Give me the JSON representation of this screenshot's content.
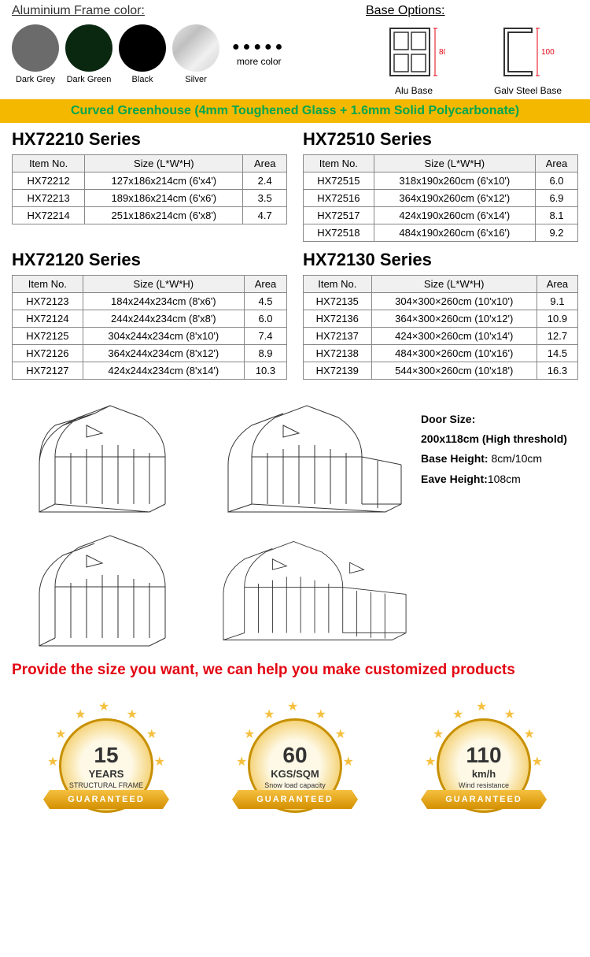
{
  "frame_section": {
    "title": "Aluminium Frame color:",
    "colors": [
      {
        "name": "Dark Grey",
        "hex": "#6b6b6b"
      },
      {
        "name": "Dark Green",
        "hex": "#0a2810"
      },
      {
        "name": "Black",
        "hex": "#000000"
      },
      {
        "name": "Silver",
        "hex": "linear-gradient(135deg,#e8e8e8,#c0c0c0,#f0f0f0,#d0d0d0)"
      }
    ],
    "more_dots": "●●●●●",
    "more_label": "more color"
  },
  "base_section": {
    "title": "Base Options:",
    "items": [
      {
        "label": "Alu Base",
        "dim": "80"
      },
      {
        "label": "Galv Steel Base",
        "dim": "100"
      }
    ]
  },
  "banner": "Curved Greenhouse (4mm Toughened Glass + 1.6mm Solid Polycarbonate)",
  "series": [
    {
      "title": "HX72210 Series",
      "headers": [
        "Item No.",
        "Size  (L*W*H)",
        "Area"
      ],
      "rows": [
        [
          "HX72212",
          "127x186x214cm  (6'x4')",
          "2.4"
        ],
        [
          "HX72213",
          "189x186x214cm  (6'x6')",
          "3.5"
        ],
        [
          "HX72214",
          "251x186x214cm  (6'x8')",
          "4.7"
        ]
      ]
    },
    {
      "title": "HX72510 Series",
      "headers": [
        "Item No.",
        "Size  (L*W*H)",
        "Area"
      ],
      "rows": [
        [
          "HX72515",
          "318x190x260cm   (6'x10')",
          "6.0"
        ],
        [
          "HX72516",
          "364x190x260cm   (6'x12')",
          "6.9"
        ],
        [
          "HX72517",
          "424x190x260cm   (6'x14')",
          "8.1"
        ],
        [
          "HX72518",
          "484x190x260cm   (6'x16')",
          "9.2"
        ]
      ]
    },
    {
      "title": "HX72120 Series",
      "headers": [
        "Item No.",
        "Size  (L*W*H)",
        "Area"
      ],
      "rows": [
        [
          "HX72123",
          "184x244x234cm   (8'x6')",
          "4.5"
        ],
        [
          "HX72124",
          "244x244x234cm   (8'x8')",
          "6.0"
        ],
        [
          "HX72125",
          "304x244x234cm   (8'x10')",
          "7.4"
        ],
        [
          "HX72126",
          "364x244x234cm   (8'x12')",
          "8.9"
        ],
        [
          "HX72127",
          "424x244x234cm   (8'x14')",
          "10.3"
        ]
      ]
    },
    {
      "title": "HX72130 Series",
      "headers": [
        "Item No.",
        "Size  (L*W*H)",
        "Area"
      ],
      "rows": [
        [
          "HX72135",
          "304×300×260cm   (10'x10')",
          "9.1"
        ],
        [
          "HX72136",
          "364×300×260cm   (10'x12')",
          "10.9"
        ],
        [
          "HX72137",
          "424×300×260cm   (10'x14')",
          "12.7"
        ],
        [
          "HX72138",
          "484×300×260cm   (10'x16')",
          "14.5"
        ],
        [
          "HX72139",
          "544×300×260cm   (10'x18')",
          "16.3"
        ]
      ]
    }
  ],
  "gh_info": {
    "door_label": "Door Size:",
    "door_value": "200x118cm (High threshold)",
    "base_label": "Base Height:",
    "base_value": "8cm/10cm",
    "eave_label": "Eave Height:",
    "eave_value": "108cm"
  },
  "custom_text": "Provide the size you want, we can help you make customized products",
  "badges": [
    {
      "number": "15",
      "unit": "YEARS",
      "desc": "STRUCTURAL FRAME",
      "ribbon": "GUARANTEED"
    },
    {
      "number": "60",
      "unit": "KGS/SQM",
      "desc": "Snow load capacity",
      "ribbon": "GUARANTEED"
    },
    {
      "number": "110",
      "unit": "km/h",
      "desc": "Wind resistance",
      "ribbon": "GUARANTEED"
    }
  ],
  "colors": {
    "banner_bg": "#f5b800",
    "banner_text": "#00a651",
    "custom_red": "#e30613",
    "dim_red": "#e30613",
    "badge_gold": "#f5c040"
  }
}
